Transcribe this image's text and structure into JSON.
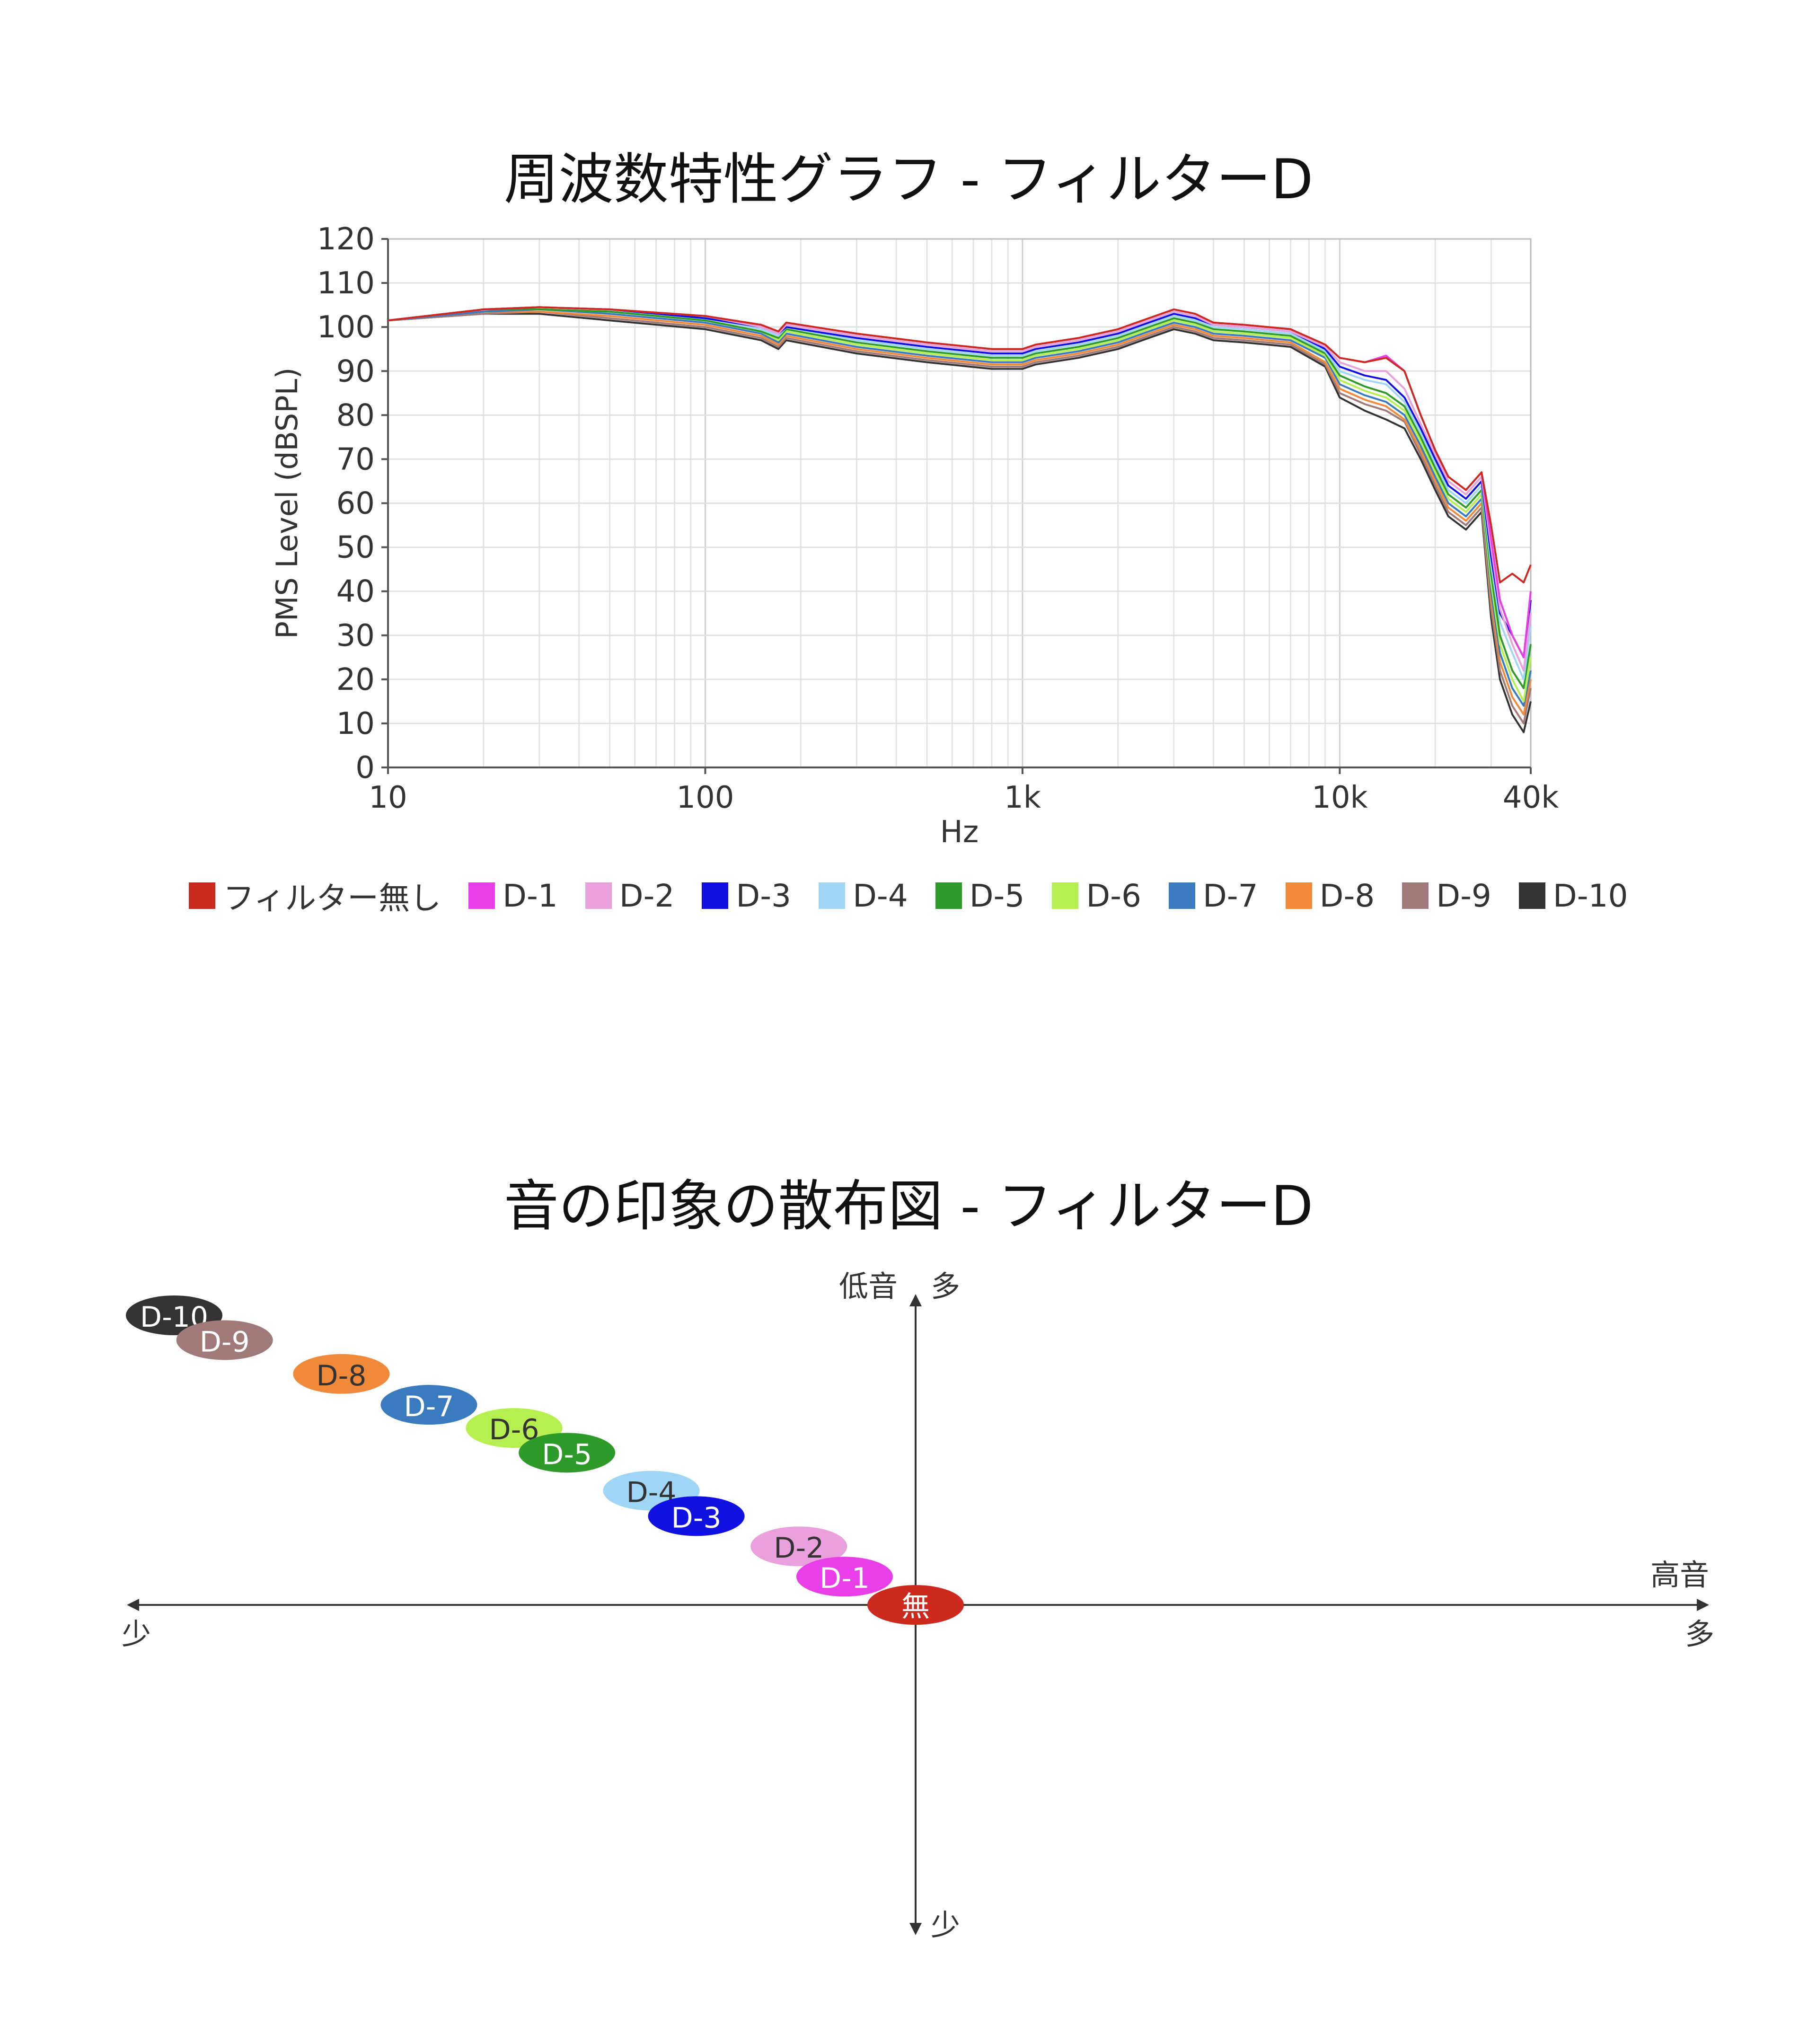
{
  "titles": {
    "freq": "周波数特性グラフ - フィルターD",
    "scatter": "音の印象の散布図 - フィルターD"
  },
  "chart_data": [
    {
      "type": "line",
      "title": "周波数特性グラフ - フィルターD",
      "xlabel": "Hz",
      "ylabel": "PMS Level (dBSPL)",
      "xscale": "log",
      "xlim": [
        10,
        40000
      ],
      "ylim": [
        0,
        120
      ],
      "xticks": [
        "10",
        "100",
        "1k",
        "10k",
        "40k"
      ],
      "yticks": [
        "0",
        "10",
        "20",
        "30",
        "40",
        "50",
        "60",
        "70",
        "80",
        "90",
        "100",
        "110",
        "120"
      ],
      "grid": true,
      "legend_position": "bottom",
      "x": [
        10,
        20,
        30,
        50,
        100,
        150,
        170,
        180,
        300,
        500,
        800,
        1000,
        1100,
        1500,
        2000,
        2500,
        3000,
        3500,
        4000,
        5000,
        7000,
        9000,
        10000,
        12000,
        14000,
        16000,
        18000,
        20000,
        22000,
        25000,
        28000,
        30000,
        32000,
        35000,
        38000,
        40000
      ],
      "series": [
        {
          "name": "フィルター無し",
          "color": "#cc2a1f",
          "values": [
            101.5,
            104,
            104.5,
            104,
            102.5,
            100.5,
            99,
            101,
            98.5,
            96.5,
            95,
            95,
            96,
            97.5,
            99.5,
            102,
            104,
            103,
            101,
            100.5,
            99.5,
            96,
            93,
            92,
            93,
            90,
            80,
            72,
            66,
            63,
            67,
            55,
            42,
            44,
            42,
            46
          ]
        },
        {
          "name": "D-1",
          "color": "#e83ee8",
          "values": [
            101.5,
            104,
            104.5,
            104,
            102.5,
            100.5,
            99,
            101,
            98.5,
            96.5,
            95,
            95,
            96,
            97.5,
            99.5,
            102,
            104,
            103,
            101,
            100.5,
            99.5,
            96,
            93,
            92,
            93.5,
            90,
            80,
            72,
            66,
            63,
            67,
            52,
            38,
            30,
            25,
            40
          ]
        },
        {
          "name": "D-2",
          "color": "#e9a0dc",
          "values": [
            101.5,
            104,
            104.5,
            104,
            102.5,
            100,
            98.5,
            100.5,
            98,
            96,
            94.5,
            94.5,
            95.5,
            97,
            99,
            101.5,
            103.5,
            102.5,
            100.5,
            100,
            99,
            95.5,
            92,
            90,
            90,
            86,
            78,
            71,
            65,
            62,
            66,
            50,
            36,
            28,
            22,
            35
          ]
        },
        {
          "name": "D-3",
          "color": "#1010e0",
          "values": [
            101.5,
            104,
            104.5,
            104,
            102,
            100,
            98.5,
            100,
            97.5,
            95.5,
            94,
            94,
            95,
            96.5,
            98.5,
            101,
            103,
            102,
            100.5,
            100,
            99,
            95,
            91,
            89,
            88,
            84,
            77,
            70,
            64,
            61,
            65,
            48,
            35,
            30,
            25,
            38
          ]
        },
        {
          "name": "D-4",
          "color": "#9fd6f5",
          "values": [
            101.5,
            104,
            104.5,
            104,
            102,
            99.5,
            98,
            100,
            97,
            95,
            93.5,
            93.5,
            94.5,
            96,
            98,
            100.5,
            102.5,
            101.5,
            100,
            99.5,
            98.5,
            94.5,
            90,
            88,
            87,
            83,
            76,
            69,
            63,
            60,
            64,
            46,
            33,
            26,
            20,
            32
          ]
        },
        {
          "name": "D-5",
          "color": "#2e9a2a",
          "values": [
            101.5,
            104,
            104,
            103.5,
            101.5,
            99,
            97.5,
            99.5,
            96.5,
            94.5,
            93,
            93,
            94,
            95.5,
            97.5,
            100,
            102,
            101,
            99.5,
            99,
            98,
            94,
            89,
            86.5,
            85,
            82,
            75,
            68,
            62,
            59,
            63,
            44,
            30,
            22,
            18,
            28
          ]
        },
        {
          "name": "D-6",
          "color": "#b6f050",
          "values": [
            101.5,
            104,
            104,
            103.5,
            101.5,
            99,
            97,
            99,
            96,
            94,
            92.5,
            92.5,
            93.5,
            95,
            97,
            99.5,
            101.5,
            100.5,
            99,
            98.5,
            97.5,
            93.5,
            88,
            85.5,
            84,
            81,
            74,
            67,
            61,
            58,
            62,
            42,
            28,
            20,
            15,
            25
          ]
        },
        {
          "name": "D-7",
          "color": "#3a7abf",
          "values": [
            101.5,
            103.5,
            104,
            103,
            101,
            98.5,
            96.5,
            98.5,
            95.5,
            93.5,
            92,
            92,
            93,
            94.5,
            96.5,
            99,
            101,
            100,
            98.5,
            98,
            97,
            93,
            87,
            84.5,
            83,
            80,
            73,
            66,
            60,
            57,
            61,
            40,
            26,
            18,
            14,
            22
          ]
        },
        {
          "name": "D-8",
          "color": "#f08a3a",
          "values": [
            101.5,
            103.5,
            103.5,
            102.5,
            100.5,
            98,
            96,
            98,
            95,
            93,
            91.5,
            91.5,
            92.5,
            94,
            96,
            98.5,
            100.5,
            99.5,
            98,
            97.5,
            96.5,
            92,
            86,
            83.5,
            82,
            79,
            72,
            65,
            59,
            56,
            60,
            38,
            24,
            16,
            12,
            20
          ]
        },
        {
          "name": "D-9",
          "color": "#a07a78",
          "values": [
            101.5,
            103,
            103.5,
            102,
            100,
            97.5,
            95.5,
            97.5,
            94.5,
            92.5,
            91,
            91,
            92,
            93.5,
            95.5,
            98,
            100,
            99,
            97.5,
            97,
            96,
            91.5,
            85,
            82.5,
            81,
            78.5,
            71,
            64,
            58,
            55,
            59,
            36,
            22,
            14,
            10,
            18
          ]
        },
        {
          "name": "D-10",
          "color": "#333333",
          "values": [
            101.5,
            103,
            103,
            101.5,
            99.5,
            97,
            95,
            97,
            94,
            92,
            90.5,
            90.5,
            91.5,
            93,
            95,
            97.5,
            99.5,
            98.5,
            97,
            96.5,
            95.5,
            91,
            84,
            81,
            79,
            77,
            70,
            63,
            57,
            54,
            58,
            34,
            20,
            12,
            8,
            15
          ]
        }
      ]
    },
    {
      "type": "scatter",
      "title": "音の印象の散布図 - フィルターD",
      "axes": {
        "x_label_top": "高音",
        "x_left": "少",
        "x_right": "多",
        "y_label": "低音",
        "y_top": "多",
        "y_bottom": "少"
      },
      "xlim": [
        -1,
        1
      ],
      "ylim": [
        -1,
        1
      ],
      "points": [
        {
          "label": "無",
          "x": 0.0,
          "y": 0.0,
          "color": "#cc2a1f",
          "text_color": "#ffffff"
        },
        {
          "label": "D-1",
          "x": -0.09,
          "y": 0.088,
          "color": "#e83ee8",
          "text_color": "#ffffff"
        },
        {
          "label": "D-2",
          "x": -0.148,
          "y": 0.182,
          "color": "#e9a0dc",
          "text_color": "#333333"
        },
        {
          "label": "D-3",
          "x": -0.278,
          "y": 0.276,
          "color": "#1010e0",
          "text_color": "#ffffff"
        },
        {
          "label": "D-4",
          "x": -0.335,
          "y": 0.355,
          "color": "#9fd6f5",
          "text_color": "#333333"
        },
        {
          "label": "D-5",
          "x": -0.442,
          "y": 0.473,
          "color": "#2e9a2a",
          "text_color": "#ffffff"
        },
        {
          "label": "D-6",
          "x": -0.509,
          "y": 0.55,
          "color": "#b6f050",
          "text_color": "#333333"
        },
        {
          "label": "D-7",
          "x": -0.617,
          "y": 0.622,
          "color": "#3a7abf",
          "text_color": "#ffffff"
        },
        {
          "label": "D-8",
          "x": -0.728,
          "y": 0.718,
          "color": "#f08a3a",
          "text_color": "#333333"
        },
        {
          "label": "D-9",
          "x": -0.876,
          "y": 0.823,
          "color": "#a07a78",
          "text_color": "#ffffff"
        },
        {
          "label": "D-10",
          "x": -0.94,
          "y": 0.9,
          "color": "#333333",
          "text_color": "#ffffff"
        }
      ]
    }
  ]
}
